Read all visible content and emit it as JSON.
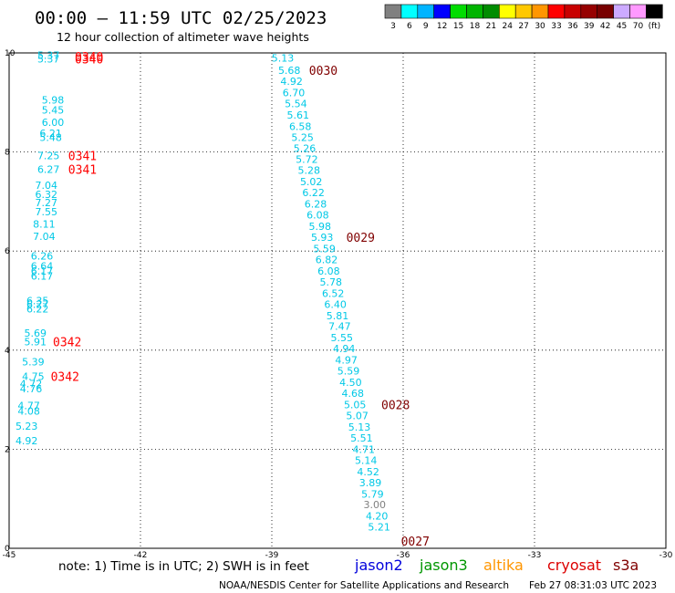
{
  "chart_data": {
    "type": "scatter",
    "title": "00:00 – 11:59 UTC 02/25/2023",
    "subtitle": "12 hour collection of altimeter wave heights",
    "xlabel": "",
    "ylabel": "",
    "xlim": [
      -45,
      -30
    ],
    "ylim": [
      0,
      10
    ],
    "x_ticks": [
      "-45",
      "-42",
      "-39",
      "-36",
      "-33",
      "-30"
    ],
    "y_ticks": [
      "0",
      "2",
      "4",
      "6",
      "8",
      "10"
    ],
    "grid": true,
    "colorbar": {
      "colors": [
        "#808080",
        "#00ffff",
        "#00b4ff",
        "#0000ff",
        "#00dc00",
        "#00b400",
        "#008c00",
        "#ffff00",
        "#ffc800",
        "#ff9600",
        "#ff0000",
        "#c80000",
        "#960000",
        "#780000",
        "#ccaaff",
        "#ff99ff",
        "#000000"
      ],
      "labels": [
        "3",
        "6",
        "9",
        "12",
        "15",
        "18",
        "21",
        "24",
        "27",
        "30",
        "33",
        "36",
        "39",
        "42",
        "45",
        "70",
        "(ft)"
      ]
    },
    "series": [
      {
        "color": "#00c8e6",
        "points": [
          {
            "x": -44.1,
            "y": 9.95,
            "label": "5.37"
          },
          {
            "x": -44.1,
            "y": 9.88,
            "label": "5.37"
          },
          {
            "x": -44.0,
            "y": 9.05,
            "label": "5.98"
          },
          {
            "x": -44.0,
            "y": 8.85,
            "label": "5.45"
          },
          {
            "x": -44.0,
            "y": 8.6,
            "label": "6.00"
          },
          {
            "x": -44.05,
            "y": 8.38,
            "label": "6.21"
          },
          {
            "x": -44.05,
            "y": 8.3,
            "label": "5.48"
          },
          {
            "x": -44.1,
            "y": 7.93,
            "label": "7.25"
          },
          {
            "x": -44.1,
            "y": 7.65,
            "label": "6.27"
          },
          {
            "x": -44.15,
            "y": 7.33,
            "label": "7.04"
          },
          {
            "x": -44.15,
            "y": 7.15,
            "label": "6.32"
          },
          {
            "x": -44.15,
            "y": 6.98,
            "label": "7.27"
          },
          {
            "x": -44.15,
            "y": 6.8,
            "label": "7.55"
          },
          {
            "x": -44.2,
            "y": 6.55,
            "label": "8.11"
          },
          {
            "x": -44.2,
            "y": 6.3,
            "label": "7.04"
          },
          {
            "x": -44.25,
            "y": 5.9,
            "label": "6.26"
          },
          {
            "x": -44.25,
            "y": 5.7,
            "label": "6.64"
          },
          {
            "x": -44.25,
            "y": 5.6,
            "label": "6.17"
          },
          {
            "x": -44.25,
            "y": 5.5,
            "label": "6.17"
          },
          {
            "x": -44.35,
            "y": 5.0,
            "label": "6.35"
          },
          {
            "x": -44.35,
            "y": 4.93,
            "label": "6.27"
          },
          {
            "x": -44.35,
            "y": 4.83,
            "label": "6.22"
          },
          {
            "x": -44.4,
            "y": 4.35,
            "label": "5.69"
          },
          {
            "x": -44.4,
            "y": 4.17,
            "label": "5.91"
          },
          {
            "x": -44.45,
            "y": 3.77,
            "label": "5.39"
          },
          {
            "x": -44.45,
            "y": 3.47,
            "label": "4.75"
          },
          {
            "x": -44.5,
            "y": 3.32,
            "label": "4.72"
          },
          {
            "x": -44.5,
            "y": 3.22,
            "label": "4.76"
          },
          {
            "x": -44.55,
            "y": 2.88,
            "label": "4.77"
          },
          {
            "x": -44.55,
            "y": 2.77,
            "label": "4.08"
          },
          {
            "x": -44.6,
            "y": 2.47,
            "label": "5.23"
          },
          {
            "x": -44.6,
            "y": 2.17,
            "label": "4.92"
          }
        ]
      },
      {
        "color": "#00c8e6",
        "points": [
          {
            "x": -38.75,
            "y": 9.9,
            "label": "5.13"
          },
          {
            "x": -38.6,
            "y": 9.65,
            "label": "5.68"
          },
          {
            "x": -38.55,
            "y": 9.43,
            "label": "4.92"
          },
          {
            "x": -38.5,
            "y": 9.2,
            "label": "6.70"
          },
          {
            "x": -38.45,
            "y": 8.98,
            "label": "5.54"
          },
          {
            "x": -38.4,
            "y": 8.75,
            "label": "5.61"
          },
          {
            "x": -38.35,
            "y": 8.52,
            "label": "6.58"
          },
          {
            "x": -38.3,
            "y": 8.3,
            "label": "5.25"
          },
          {
            "x": -38.25,
            "y": 8.08,
            "label": "5.26"
          },
          {
            "x": -38.2,
            "y": 7.85,
            "label": "5.72"
          },
          {
            "x": -38.15,
            "y": 7.63,
            "label": "5.28"
          },
          {
            "x": -38.1,
            "y": 7.4,
            "label": "5.02"
          },
          {
            "x": -38.05,
            "y": 7.18,
            "label": "6.22"
          },
          {
            "x": -38.0,
            "y": 6.95,
            "label": "6.28"
          },
          {
            "x": -37.95,
            "y": 6.73,
            "label": "6.08"
          },
          {
            "x": -37.9,
            "y": 6.5,
            "label": "5.98"
          },
          {
            "x": -37.85,
            "y": 6.28,
            "label": "5.93"
          },
          {
            "x": -37.8,
            "y": 6.05,
            "label": "5.59"
          },
          {
            "x": -37.75,
            "y": 5.83,
            "label": "6.82"
          },
          {
            "x": -37.7,
            "y": 5.6,
            "label": "6.08"
          },
          {
            "x": -37.65,
            "y": 5.38,
            "label": "5.78"
          },
          {
            "x": -37.6,
            "y": 5.15,
            "label": "6.52"
          },
          {
            "x": -37.55,
            "y": 4.93,
            "label": "6.40"
          },
          {
            "x": -37.5,
            "y": 4.7,
            "label": "5.81"
          },
          {
            "x": -37.45,
            "y": 4.48,
            "label": "7.47"
          },
          {
            "x": -37.4,
            "y": 4.25,
            "label": "5.55"
          },
          {
            "x": -37.35,
            "y": 4.03,
            "label": "4.94"
          },
          {
            "x": -37.3,
            "y": 3.8,
            "label": "4.97"
          },
          {
            "x": -37.25,
            "y": 3.58,
            "label": "5.59"
          },
          {
            "x": -37.2,
            "y": 3.35,
            "label": "4.50"
          },
          {
            "x": -37.15,
            "y": 3.13,
            "label": "4.68"
          },
          {
            "x": -37.1,
            "y": 2.9,
            "label": "5.05"
          },
          {
            "x": -37.05,
            "y": 2.68,
            "label": "5.07"
          },
          {
            "x": -37.0,
            "y": 2.45,
            "label": "5.13"
          },
          {
            "x": -36.95,
            "y": 2.23,
            "label": "5.51"
          },
          {
            "x": -36.9,
            "y": 2.0,
            "label": "4.71"
          },
          {
            "x": -36.85,
            "y": 1.78,
            "label": "5.14"
          },
          {
            "x": -36.8,
            "y": 1.55,
            "label": "4.52"
          },
          {
            "x": -36.75,
            "y": 1.33,
            "label": "3.89"
          },
          {
            "x": -36.7,
            "y": 1.1,
            "label": "5.79"
          },
          {
            "x": -36.65,
            "y": 0.88,
            "label": "3.00",
            "color": "#808080"
          },
          {
            "x": -36.6,
            "y": 0.65,
            "label": "4.20"
          },
          {
            "x": -36.55,
            "y": 0.43,
            "label": "5.21"
          }
        ]
      }
    ],
    "time_labels": [
      {
        "x": -43.5,
        "y": 9.93,
        "text": "0340",
        "color": "#ff0000"
      },
      {
        "x": -43.5,
        "y": 9.88,
        "text": "0340",
        "color": "#ff0000"
      },
      {
        "x": -43.65,
        "y": 7.93,
        "text": "0341",
        "color": "#ff0000"
      },
      {
        "x": -43.65,
        "y": 7.65,
        "text": "0341",
        "color": "#ff0000"
      },
      {
        "x": -44.0,
        "y": 4.17,
        "text": "0342",
        "color": "#ff0000"
      },
      {
        "x": -44.05,
        "y": 3.47,
        "text": "0342",
        "color": "#ff0000"
      },
      {
        "x": -38.15,
        "y": 9.65,
        "text": "0030",
        "color": "#800000"
      },
      {
        "x": -37.3,
        "y": 6.28,
        "text": "0029",
        "color": "#800000"
      },
      {
        "x": -36.5,
        "y": 2.9,
        "text": "0028",
        "color": "#800000"
      },
      {
        "x": -36.05,
        "y": 0.15,
        "text": "0027",
        "color": "#800000"
      }
    ]
  },
  "footer": {
    "note": "note:  1) Time is in UTC; 2) SWH is in feet",
    "legend": [
      {
        "name": "jason2",
        "color": "#0000dc"
      },
      {
        "name": "jason3",
        "color": "#009600"
      },
      {
        "name": "altika",
        "color": "#ff9600"
      },
      {
        "name": "cryosat",
        "color": "#dc0000"
      },
      {
        "name": "s3a",
        "color": "#800000"
      }
    ],
    "credit": "NOAA/NESDIS Center for Satellite Applications and Research",
    "timestamp": "Feb 27 08:31:03 UTC 2023"
  }
}
